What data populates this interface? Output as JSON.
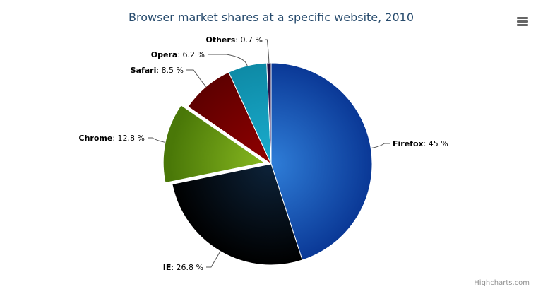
{
  "chart_data": {
    "type": "pie",
    "title": "Browser market shares at a specific website, 2010",
    "unit": "%",
    "slices": [
      {
        "name": "Firefox",
        "value": 45,
        "color": "#2f7ed8",
        "dark": "#0a3896",
        "sliced": false
      },
      {
        "name": "IE",
        "value": 26.8,
        "color": "#0d233a",
        "dark": "#000000",
        "sliced": false
      },
      {
        "name": "Chrome",
        "value": 12.8,
        "color": "#8bbc21",
        "dark": "#4a7808",
        "sliced": true
      },
      {
        "name": "Safari",
        "value": 8.5,
        "color": "#910000",
        "dark": "#5e0000",
        "sliced": false
      },
      {
        "name": "Opera",
        "value": 6.2,
        "color": "#1aadce",
        "dark": "#0e8aa6",
        "sliced": false
      },
      {
        "name": "Others",
        "value": 0.7,
        "color": "#492970",
        "dark": "#1d0b3d",
        "sliced": false
      }
    ],
    "labels": [
      "Firefox: 45 %",
      "IE: 26.8 %",
      "Chrome: 12.8 %",
      "Safari: 8.5 %",
      "Opera: 6.2 %",
      "Others: 0.7 %"
    ]
  },
  "credits": "Highcharts.com",
  "menu_icon": "hamburger-menu-icon"
}
